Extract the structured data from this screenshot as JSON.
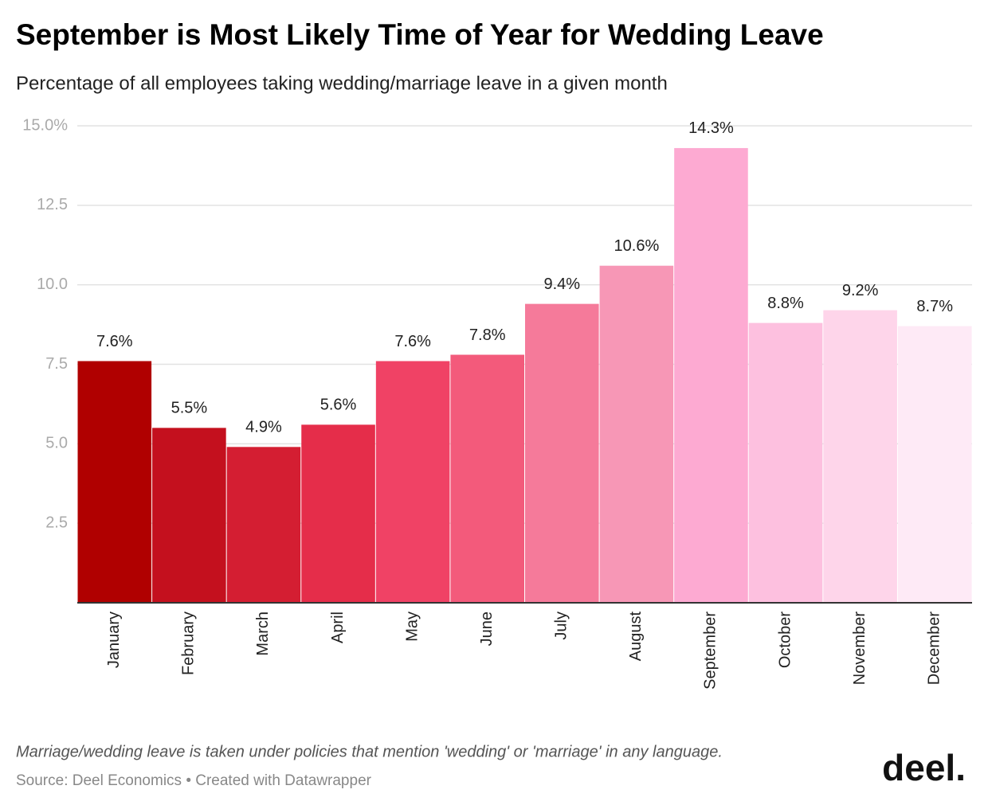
{
  "chart_data": {
    "type": "bar",
    "title": "September is Most Likely Time of Year for Wedding Leave",
    "subtitle": "Percentage of all employees taking wedding/marriage leave in a given month",
    "categories": [
      "January",
      "February",
      "March",
      "April",
      "May",
      "June",
      "July",
      "August",
      "September",
      "October",
      "November",
      "December"
    ],
    "values": [
      7.6,
      5.5,
      4.9,
      5.6,
      7.6,
      7.8,
      9.4,
      10.6,
      14.3,
      8.8,
      9.2,
      8.7
    ],
    "value_labels": [
      "7.6%",
      "5.5%",
      "4.9%",
      "5.6%",
      "7.6%",
      "7.8%",
      "9.4%",
      "10.6%",
      "14.3%",
      "8.8%",
      "9.2%",
      "8.7%"
    ],
    "colors": [
      "#b00000",
      "#c4101e",
      "#d41e32",
      "#e52d4a",
      "#f04265",
      "#f35a7b",
      "#f57a9a",
      "#f797b6",
      "#fdaad2",
      "#fdc0df",
      "#fed5ea",
      "#feeaf6"
    ],
    "ylim": [
      0,
      15
    ],
    "yticks": [
      {
        "value": 15,
        "label": "15.0%"
      },
      12.5,
      {
        "value": 10,
        "label": "10.0"
      },
      7.5,
      {
        "value": 5,
        "label": "5.0"
      },
      2.5
    ],
    "grid": true,
    "note": "Marriage/wedding leave is taken under policies that mention 'wedding' or 'marriage' in any language.",
    "source": "Source: Deel Economics • Created with Datawrapper",
    "logo": "deel."
  }
}
